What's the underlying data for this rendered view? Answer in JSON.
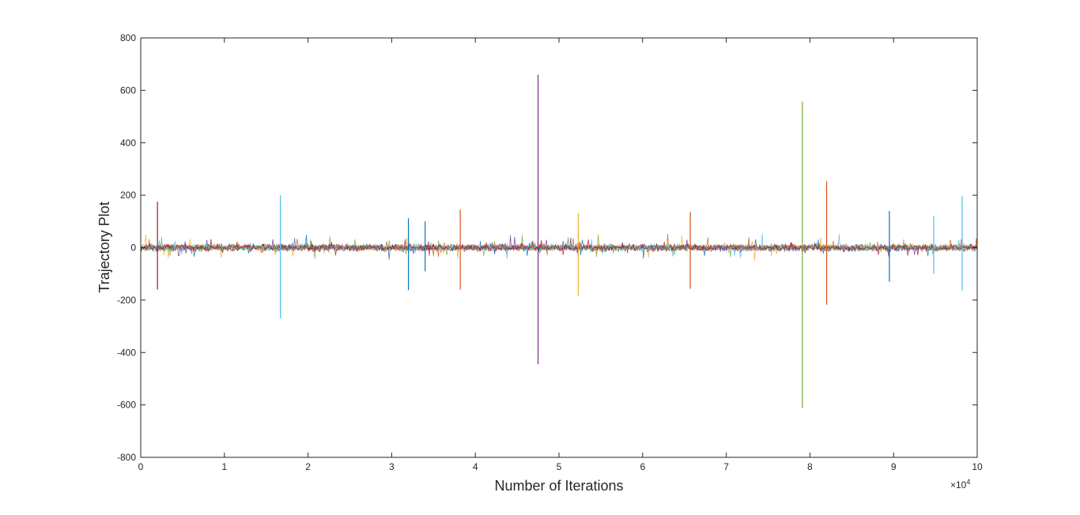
{
  "chart_data": {
    "type": "line",
    "title": "",
    "xlabel": "Number of Iterations",
    "ylabel": "Trajectory Plot",
    "x_exponent_label": "×10",
    "x_exponent_power": "4",
    "xlim": [
      0,
      100000
    ],
    "ylim": [
      -800,
      800
    ],
    "x_ticks": [
      0,
      10000,
      20000,
      30000,
      40000,
      50000,
      60000,
      70000,
      80000,
      90000,
      100000
    ],
    "x_tick_labels": [
      "0",
      "1",
      "2",
      "3",
      "4",
      "5",
      "6",
      "7",
      "8",
      "9",
      "10"
    ],
    "y_ticks": [
      -800,
      -600,
      -400,
      -200,
      0,
      200,
      400,
      600,
      800
    ],
    "y_tick_labels": [
      "-800",
      "-600",
      "-400",
      "-200",
      "0",
      "200",
      "400",
      "600",
      "800"
    ],
    "grid": false,
    "legend": "none",
    "colors": [
      "#0072bd",
      "#d95319",
      "#edb120",
      "#7e2f8e",
      "#77ac30",
      "#4dbeee",
      "#a2142f"
    ],
    "noise_amplitude": 12,
    "spikes": [
      {
        "x": 2000,
        "max": 175,
        "min": -160,
        "color": "#a2142f"
      },
      {
        "x": 16700,
        "max": 200,
        "min": -270,
        "color": "#4dbeee"
      },
      {
        "x": 32000,
        "max": 112,
        "min": -162,
        "color": "#0072bd"
      },
      {
        "x": 34000,
        "max": 100,
        "min": -90,
        "color": "#0072bd"
      },
      {
        "x": 38200,
        "max": 145,
        "min": -160,
        "color": "#d95319"
      },
      {
        "x": 47500,
        "max": 660,
        "min": -445,
        "color": "#7e2f8e"
      },
      {
        "x": 52300,
        "max": 132,
        "min": -185,
        "color": "#edb120"
      },
      {
        "x": 65700,
        "max": 135,
        "min": -157,
        "color": "#d95319"
      },
      {
        "x": 79100,
        "max": 557,
        "min": -612,
        "color": "#77ac30"
      },
      {
        "x": 82000,
        "max": 253,
        "min": -218,
        "color": "#d95319"
      },
      {
        "x": 89500,
        "max": 140,
        "min": -130,
        "color": "#0072bd"
      },
      {
        "x": 94800,
        "max": 120,
        "min": -100,
        "color": "#4dbeee"
      },
      {
        "x": 98200,
        "max": 197,
        "min": -165,
        "color": "#4dbeee"
      }
    ]
  }
}
